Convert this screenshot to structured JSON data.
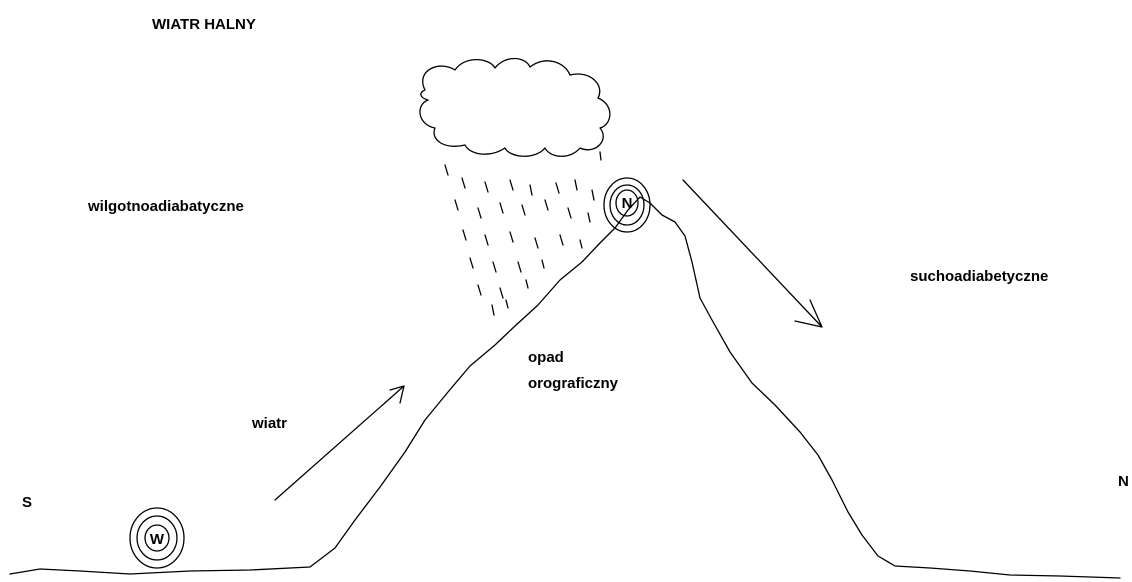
{
  "title": "WIATR HALNY",
  "zones": [
    "wilgotnoadiabatyczne",
    "suchoadiabetyczne"
  ],
  "precipitation": [
    "opad",
    "orograficzny"
  ],
  "wind": "wiatr",
  "directions": [
    "S",
    "N"
  ],
  "pressure_centers": [
    "W",
    "N"
  ]
}
